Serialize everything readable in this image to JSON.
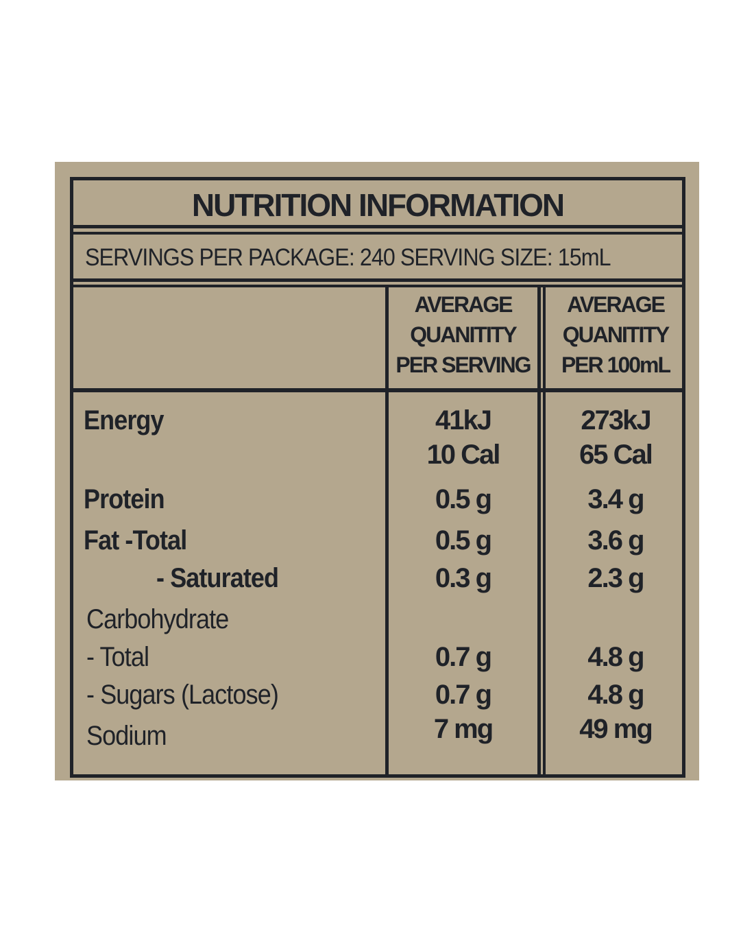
{
  "header": {
    "title": "NUTRITION INFORMATION",
    "servings": "SERVINGS PER PACKAGE: 240 SERVING SIZE: 15mL"
  },
  "table": {
    "columns": [
      [
        "AVERAGE",
        "QUANITITY",
        "PER SERVING"
      ],
      [
        "AVERAGE",
        "QUANITITY",
        "PER 100mL"
      ]
    ],
    "rows": [
      {
        "label": "Energy",
        "serving": [
          "41kJ",
          "10 Cal"
        ],
        "per100": [
          "273kJ",
          "65 Cal"
        ]
      },
      {
        "label": "Protein",
        "serving": [
          "0.5 g"
        ],
        "per100": [
          "3.4 g"
        ]
      },
      {
        "label": "Fat -Total",
        "serving": [
          "0.5 g"
        ],
        "per100": [
          "3.6 g"
        ]
      },
      {
        "label": "- Saturated",
        "serving": [
          "0.3 g"
        ],
        "per100": [
          "2.3 g"
        ]
      },
      {
        "label": "Carbohydrate",
        "serving": [],
        "per100": []
      },
      {
        "label": "- Total",
        "serving": [
          "0.7 g"
        ],
        "per100": [
          "4.8 g"
        ]
      },
      {
        "label": "- Sugars (Lactose)",
        "serving": [
          "0.7 g"
        ],
        "per100": [
          "4.8 g"
        ]
      },
      {
        "label": "Sodium",
        "serving": [
          "7 mg"
        ],
        "per100": [
          "49 mg"
        ]
      }
    ]
  }
}
